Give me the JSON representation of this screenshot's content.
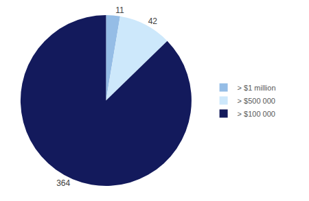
{
  "chart_data": {
    "type": "pie",
    "categories": [
      "> $1 million",
      "> $500 000",
      "> $100 000"
    ],
    "values": [
      11,
      42,
      364
    ],
    "colors": [
      "#95bde6",
      "#cde8fb",
      "#131a5c"
    ],
    "data_labels": true,
    "legend": "right"
  }
}
